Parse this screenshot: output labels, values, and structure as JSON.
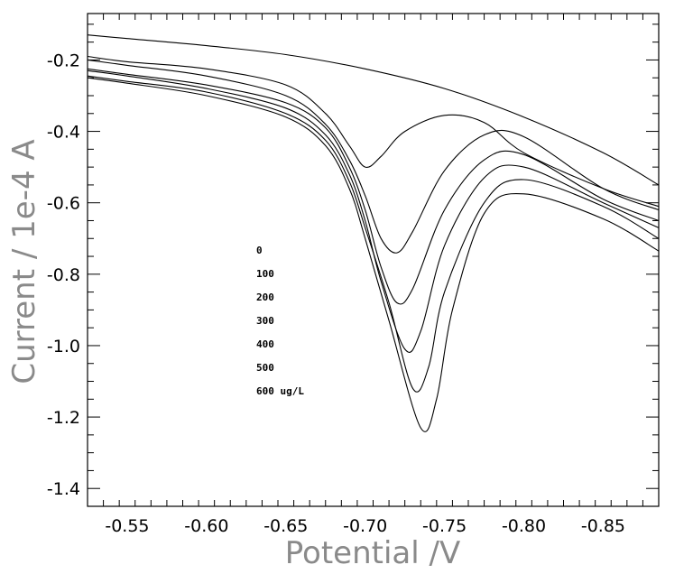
{
  "chart_data": {
    "type": "line",
    "xlabel": "Potential /V",
    "ylabel": "Current / 1e-4 A",
    "xlim": [
      -0.525,
      -0.885
    ],
    "ylim": [
      -1.45,
      -0.07
    ],
    "x_reversed": true,
    "xticks": [
      -0.55,
      -0.6,
      -0.65,
      -0.7,
      -0.75,
      -0.8,
      -0.85
    ],
    "xtick_labels": [
      "-0.55",
      "-0.60",
      "-0.65",
      "-0.70",
      "-0.75",
      "-0.80",
      "-0.85"
    ],
    "yticks": [
      -0.2,
      -0.4,
      -0.6,
      -0.8,
      -1.0,
      -1.2,
      -1.4
    ],
    "ytick_labels": [
      "-0.2",
      "-0.4",
      "-0.6",
      "-0.8",
      "-1.0",
      "-1.2",
      "-1.4"
    ],
    "grid": false,
    "legend": [
      "0",
      "100",
      "200",
      "300",
      "400",
      "500",
      "600 ug/L"
    ],
    "line_color": "#000000",
    "series": [
      {
        "x": [
          -0.525,
          -0.55,
          -0.6,
          -0.65,
          -0.7,
          -0.75,
          -0.8,
          -0.85,
          -0.885
        ],
        "y": [
          -0.13,
          -0.14,
          -0.16,
          -0.185,
          -0.225,
          -0.28,
          -0.36,
          -0.46,
          -0.55
        ]
      },
      {
        "x": [
          -0.525,
          -0.55,
          -0.6,
          -0.65,
          -0.675,
          -0.69,
          -0.7,
          -0.71,
          -0.725,
          -0.75,
          -0.775,
          -0.8,
          -0.85,
          -0.885
        ],
        "y": [
          -0.19,
          -0.205,
          -0.225,
          -0.27,
          -0.35,
          -0.44,
          -0.5,
          -0.47,
          -0.4,
          -0.355,
          -0.375,
          -0.46,
          -0.56,
          -0.61
        ]
      },
      {
        "x": [
          -0.525,
          -0.55,
          -0.6,
          -0.65,
          -0.675,
          -0.69,
          -0.7,
          -0.71,
          -0.72,
          -0.73,
          -0.75,
          -0.775,
          -0.8,
          -0.85,
          -0.885
        ],
        "y": [
          -0.2,
          -0.215,
          -0.245,
          -0.3,
          -0.38,
          -0.48,
          -0.58,
          -0.7,
          -0.74,
          -0.68,
          -0.51,
          -0.41,
          -0.415,
          -0.56,
          -0.62
        ]
      },
      {
        "x": [
          -0.525,
          -0.55,
          -0.6,
          -0.65,
          -0.675,
          -0.69,
          -0.7,
          -0.71,
          -0.72,
          -0.73,
          -0.75,
          -0.775,
          -0.8,
          -0.85,
          -0.885
        ],
        "y": [
          -0.225,
          -0.24,
          -0.27,
          -0.32,
          -0.39,
          -0.5,
          -0.62,
          -0.78,
          -0.88,
          -0.84,
          -0.62,
          -0.48,
          -0.465,
          -0.59,
          -0.65
        ]
      },
      {
        "x": [
          -0.525,
          -0.55,
          -0.6,
          -0.65,
          -0.675,
          -0.69,
          -0.7,
          -0.71,
          -0.725,
          -0.735,
          -0.75,
          -0.775,
          -0.8,
          -0.85,
          -0.885
        ],
        "y": [
          -0.23,
          -0.245,
          -0.28,
          -0.335,
          -0.41,
          -0.52,
          -0.65,
          -0.82,
          -1.01,
          -0.96,
          -0.72,
          -0.53,
          -0.5,
          -0.6,
          -0.67
        ]
      },
      {
        "x": [
          -0.525,
          -0.55,
          -0.6,
          -0.65,
          -0.675,
          -0.69,
          -0.7,
          -0.715,
          -0.73,
          -0.74,
          -0.75,
          -0.775,
          -0.8,
          -0.85,
          -0.885
        ],
        "y": [
          -0.245,
          -0.26,
          -0.29,
          -0.35,
          -0.425,
          -0.54,
          -0.67,
          -0.88,
          -1.12,
          -1.06,
          -0.85,
          -0.6,
          -0.535,
          -0.61,
          -0.7
        ]
      },
      {
        "x": [
          -0.525,
          -0.55,
          -0.6,
          -0.65,
          -0.675,
          -0.69,
          -0.7,
          -0.715,
          -0.735,
          -0.745,
          -0.755,
          -0.775,
          -0.8,
          -0.85,
          -0.885
        ],
        "y": [
          -0.25,
          -0.265,
          -0.3,
          -0.36,
          -0.44,
          -0.56,
          -0.7,
          -0.93,
          -1.23,
          -1.15,
          -0.9,
          -0.63,
          -0.575,
          -0.645,
          -0.735
        ]
      }
    ]
  }
}
